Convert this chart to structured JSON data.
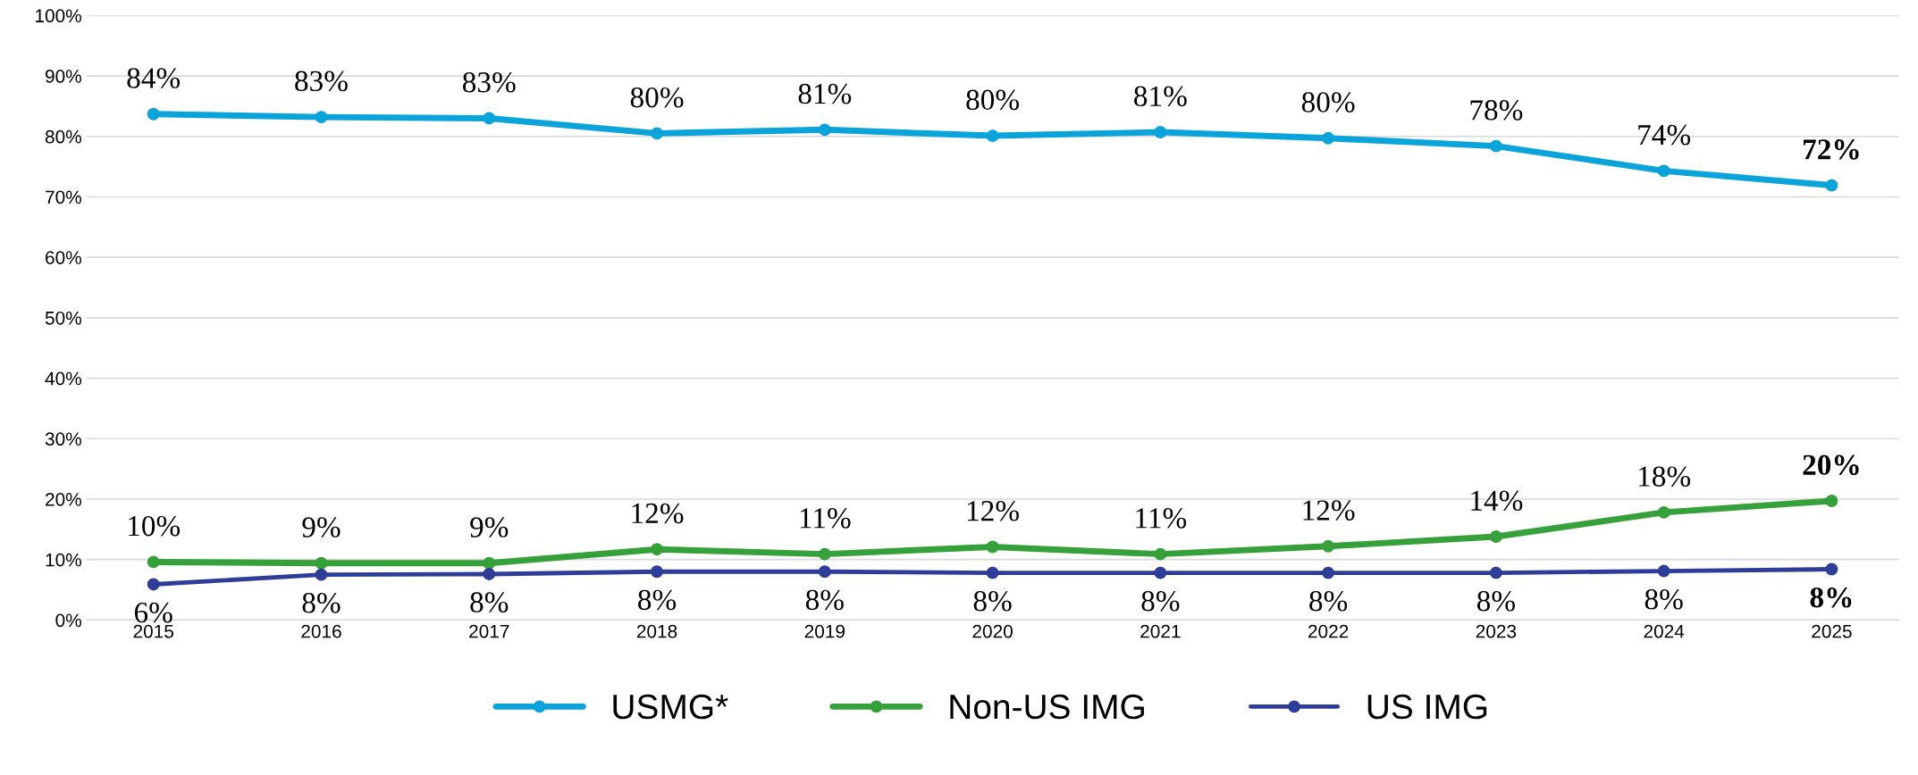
{
  "chart_data": {
    "type": "line",
    "categories": [
      "2015",
      "2016",
      "2017",
      "2018",
      "2019",
      "2020",
      "2021",
      "2022",
      "2023",
      "2024",
      "2025"
    ],
    "series": [
      {
        "name": "USMG*",
        "color": "#0aa3da",
        "values": [
          83.7,
          83.2,
          83.0,
          80.5,
          81.1,
          80.1,
          80.7,
          79.7,
          78.4,
          74.3,
          71.9
        ],
        "value_labels": [
          "84%",
          "83%",
          "83%",
          "80%",
          "81%",
          "80%",
          "81%",
          "80%",
          "78%",
          "74%",
          "72%"
        ]
      },
      {
        "name": "Non-US IMG",
        "color": "#36a03a",
        "values": [
          9.6,
          9.4,
          9.4,
          11.7,
          10.9,
          12.1,
          10.9,
          12.2,
          13.8,
          17.8,
          19.7
        ],
        "value_labels": [
          "10%",
          "9%",
          "9%",
          "12%",
          "11%",
          "12%",
          "11%",
          "12%",
          "14%",
          "18%",
          "20%"
        ]
      },
      {
        "name": "US IMG",
        "color": "#2e3d98",
        "values": [
          5.9,
          7.5,
          7.6,
          8.0,
          8.0,
          7.8,
          7.8,
          7.8,
          7.8,
          8.1,
          8.4
        ],
        "value_labels": [
          "6%",
          "8%",
          "8%",
          "8%",
          "8%",
          "8%",
          "8%",
          "8%",
          "8%",
          "8%",
          "8%"
        ]
      }
    ],
    "ylim": [
      0,
      100
    ],
    "yticks": [
      {
        "value": 0,
        "label": "0%"
      },
      {
        "value": 10,
        "label": "10%"
      },
      {
        "value": 20,
        "label": "20%"
      },
      {
        "value": 30,
        "label": "30%"
      },
      {
        "value": 40,
        "label": "40%"
      },
      {
        "value": 50,
        "label": "50%"
      },
      {
        "value": 60,
        "label": "60%"
      },
      {
        "value": 70,
        "label": "70%"
      },
      {
        "value": 80,
        "label": "80%"
      },
      {
        "value": 90,
        "label": "90%"
      },
      {
        "value": 100,
        "label": "100%"
      }
    ],
    "grid": "y",
    "legend": "bottom",
    "marker": "circle",
    "line_style": "solid"
  }
}
